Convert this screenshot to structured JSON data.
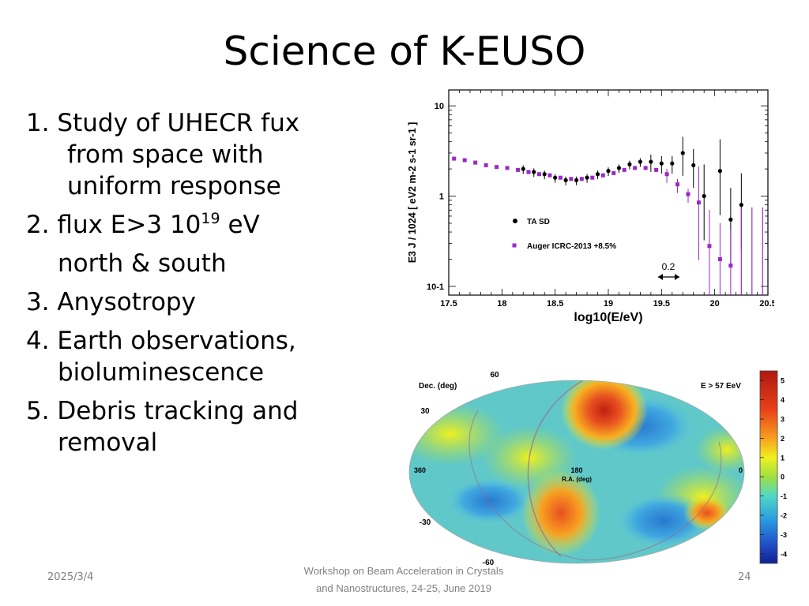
{
  "slide": {
    "title": "Science of K-EUSO",
    "bullets": [
      "1. Study of UHECR fux",
      "from space with",
      "uniform response",
      "2. flux E>3 10",
      "19",
      "eV",
      "north & south",
      "3. Anysotropy",
      "4. Earth observations,",
      "bioluminescence",
      "5. Debris tracking and",
      "removal"
    ]
  },
  "footer": {
    "date": "2025/3/4",
    "line1": "Workshop on Beam Acceleration in Crystals",
    "line2": "and Nanostructures, 24-25, June 2019",
    "page": "24"
  },
  "chart_data": [
    {
      "type": "scatter",
      "xlabel": "log10(E/eV)",
      "ylabel": "E3 J / 1024 [ eV2 m-2 s-1 sr-1 ]",
      "xticks": [
        "17.5",
        "18",
        "18.5",
        "19",
        "19.5",
        "20",
        "20.5"
      ],
      "yticks": [
        "10",
        "1",
        "10-1"
      ],
      "xlim": [
        17.5,
        20.5
      ],
      "ylim": [
        0.08,
        15
      ],
      "y_scale": "log",
      "annotation": "0.2",
      "series": [
        {
          "name": "TA SD",
          "color": "#000000",
          "points": [
            {
              "x": 18.2,
              "y": 2.0
            },
            {
              "x": 18.3,
              "y": 1.85
            },
            {
              "x": 18.4,
              "y": 1.75
            },
            {
              "x": 18.5,
              "y": 1.6
            },
            {
              "x": 18.6,
              "y": 1.5
            },
            {
              "x": 18.7,
              "y": 1.5
            },
            {
              "x": 18.8,
              "y": 1.6
            },
            {
              "x": 18.9,
              "y": 1.75
            },
            {
              "x": 19.0,
              "y": 1.9
            },
            {
              "x": 19.1,
              "y": 2.05
            },
            {
              "x": 19.2,
              "y": 2.25
            },
            {
              "x": 19.3,
              "y": 2.4
            },
            {
              "x": 19.4,
              "y": 2.4
            },
            {
              "x": 19.5,
              "y": 2.3
            },
            {
              "x": 19.6,
              "y": 2.3
            },
            {
              "x": 19.7,
              "y": 3.0
            },
            {
              "x": 19.8,
              "y": 2.2
            },
            {
              "x": 19.9,
              "y": 1.0
            },
            {
              "x": 20.05,
              "y": 1.9
            },
            {
              "x": 20.15,
              "y": 0.55
            },
            {
              "x": 20.25,
              "y": 0.8
            }
          ]
        },
        {
          "name": "Auger ICRC-2013 +8.5%",
          "color": "#9a28c8",
          "points": [
            {
              "x": 17.55,
              "y": 2.6
            },
            {
              "x": 17.65,
              "y": 2.5
            },
            {
              "x": 17.75,
              "y": 2.35
            },
            {
              "x": 17.85,
              "y": 2.2
            },
            {
              "x": 17.95,
              "y": 2.1
            },
            {
              "x": 18.05,
              "y": 2.05
            },
            {
              "x": 18.15,
              "y": 1.95
            },
            {
              "x": 18.25,
              "y": 1.85
            },
            {
              "x": 18.35,
              "y": 1.75
            },
            {
              "x": 18.45,
              "y": 1.7
            },
            {
              "x": 18.55,
              "y": 1.6
            },
            {
              "x": 18.65,
              "y": 1.55
            },
            {
              "x": 18.75,
              "y": 1.55
            },
            {
              "x": 18.85,
              "y": 1.6
            },
            {
              "x": 18.95,
              "y": 1.7
            },
            {
              "x": 19.05,
              "y": 1.8
            },
            {
              "x": 19.15,
              "y": 1.95
            },
            {
              "x": 19.25,
              "y": 2.05
            },
            {
              "x": 19.35,
              "y": 2.05
            },
            {
              "x": 19.45,
              "y": 1.95
            },
            {
              "x": 19.55,
              "y": 1.75
            },
            {
              "x": 19.65,
              "y": 1.35
            },
            {
              "x": 19.75,
              "y": 1.05
            },
            {
              "x": 19.85,
              "y": 0.85
            },
            {
              "x": 19.95,
              "y": 0.28
            },
            {
              "x": 20.05,
              "y": 0.2
            },
            {
              "x": 20.15,
              "y": 0.17
            }
          ]
        }
      ]
    },
    {
      "type": "heatmap",
      "xlabel": "R.A. (deg)",
      "ylabel": "Dec. (deg)",
      "title": "E > 57 EeV",
      "x_tick_labels": [
        "360",
        "180",
        "0"
      ],
      "y_tick_labels": [
        "60",
        "30",
        "-30",
        "-60"
      ],
      "colorbar_ticks": [
        "5",
        "4",
        "3",
        "2",
        "1",
        "0",
        "-1",
        "-2",
        "-3",
        "-4"
      ],
      "colorbar_range": [
        -4.5,
        5.5
      ],
      "colorscale": [
        "#2040c0",
        "#30a0e0",
        "#70d0d0",
        "#a0e040",
        "#f0f020",
        "#f08020",
        "#c02010"
      ]
    }
  ]
}
